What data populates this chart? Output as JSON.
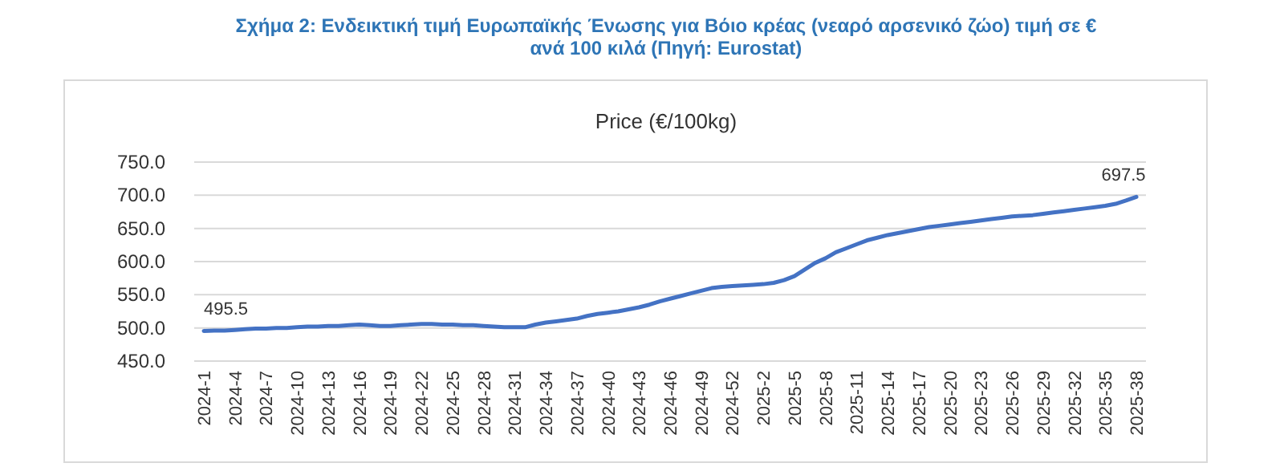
{
  "chart_data": {
    "type": "line",
    "title": "Σχήμα 2: Ενδεικτική τιμή Ευρωπαϊκής Ένωσης για Βόιο κρέας (νεαρό αρσενικό ζώο) τιμή σε €\nανά 100 κιλά (Πηγή: Eurostat)",
    "subtitle": "Price (€/100kg)",
    "categories": [
      "2024-1",
      null,
      null,
      "2024-4",
      null,
      null,
      "2024-7",
      null,
      null,
      "2024-10",
      null,
      null,
      "2024-13",
      null,
      null,
      "2024-16",
      null,
      null,
      "2024-19",
      null,
      null,
      "2024-22",
      null,
      null,
      "2024-25",
      null,
      null,
      "2024-28",
      null,
      null,
      "2024-31",
      null,
      null,
      "2024-34",
      null,
      null,
      "2024-37",
      null,
      null,
      "2024-40",
      null,
      null,
      "2024-43",
      null,
      null,
      "2024-46",
      null,
      null,
      "2024-49",
      null,
      null,
      "2024-52",
      null,
      null,
      "2025-2",
      null,
      null,
      "2025-5",
      null,
      null,
      "2025-8",
      null,
      null,
      "2025-11",
      null,
      null,
      "2025-14",
      null,
      null,
      "2025-17",
      null,
      null,
      "2025-20",
      null,
      null,
      "2025-23",
      null,
      null,
      "2025-26",
      null,
      null,
      "2025-29",
      null,
      null,
      "2025-32",
      null,
      null,
      "2025-35",
      null,
      null,
      "2025-38"
    ],
    "series": [
      {
        "color": "#4472c4",
        "values": [
          495.5,
          496,
          496,
          497,
          498,
          499,
          499,
          500,
          500,
          501,
          502,
          502,
          503,
          503,
          504,
          505,
          504,
          503,
          503,
          504,
          505,
          506,
          506,
          505,
          505,
          504,
          504,
          503,
          502,
          501,
          501,
          501,
          505,
          508,
          510,
          512,
          514,
          518,
          521,
          523,
          525,
          528,
          531,
          535,
          540,
          544,
          548,
          552,
          556,
          560,
          562,
          563,
          564,
          565,
          566,
          568,
          572,
          578,
          588,
          598,
          605,
          614,
          620,
          626,
          632,
          636,
          640,
          643,
          646,
          649,
          652,
          654,
          656,
          658,
          660,
          662,
          664,
          666,
          668,
          669,
          670,
          672,
          674,
          676,
          678,
          680,
          682,
          684,
          687,
          692,
          697.5
        ],
        "value_labels": [
          "495.5",
          null,
          null,
          null,
          null,
          null,
          null,
          null,
          null,
          null,
          null,
          null,
          null,
          null,
          null,
          null,
          null,
          null,
          null,
          null,
          null,
          null,
          null,
          null,
          null,
          null,
          null,
          null,
          null,
          null,
          null,
          null,
          null,
          null,
          null,
          null,
          null,
          null,
          null,
          null,
          null,
          null,
          null,
          null,
          null,
          null,
          null,
          null,
          null,
          null,
          null,
          null,
          null,
          null,
          null,
          null,
          null,
          null,
          null,
          null,
          null,
          null,
          null,
          null,
          null,
          null,
          null,
          null,
          null,
          null,
          null,
          null,
          null,
          null,
          null,
          null,
          null,
          null,
          null,
          null,
          null,
          null,
          null,
          null,
          null,
          null,
          null,
          null,
          null,
          null,
          "697.5"
        ]
      }
    ],
    "ylim": [
      450,
      750
    ],
    "yticks": [
      {
        "value": 450,
        "label": "450.0"
      },
      {
        "value": 500,
        "label": "500.0"
      },
      {
        "value": 550,
        "label": "550.0"
      },
      {
        "value": 600,
        "label": "600.0"
      },
      {
        "value": 650,
        "label": "650.0"
      },
      {
        "value": 700,
        "label": "700.0"
      },
      {
        "value": 750,
        "label": "750.0"
      }
    ],
    "grid": "y",
    "marker": "none",
    "line_style": "solid"
  }
}
